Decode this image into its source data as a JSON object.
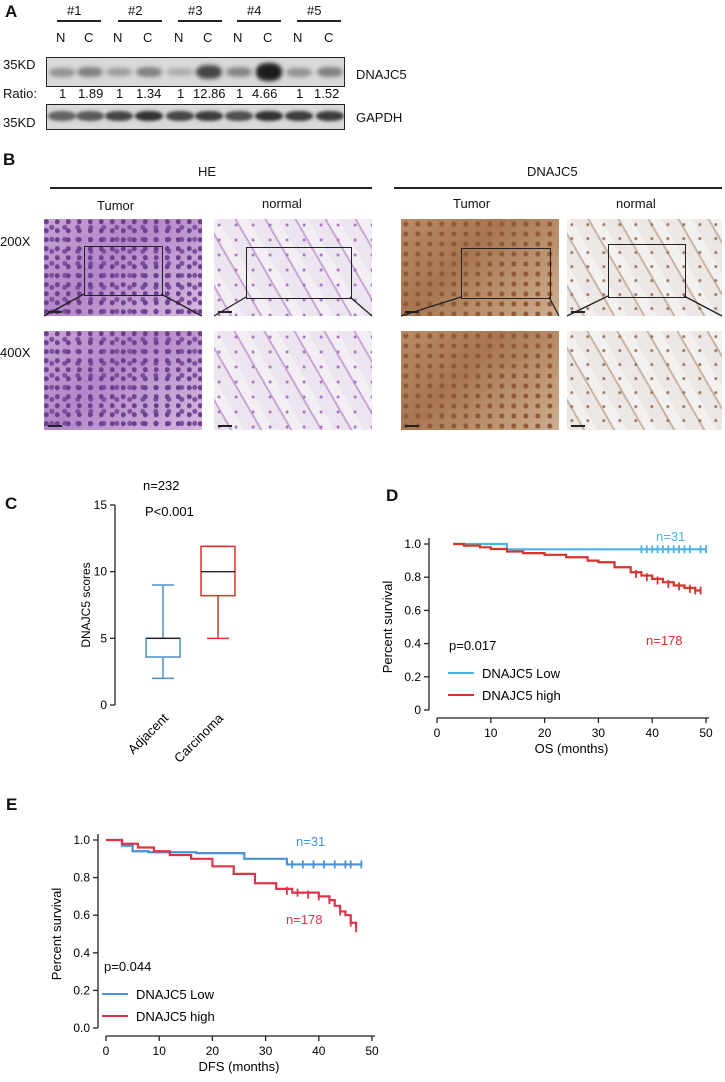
{
  "panels": {
    "A": "A",
    "B": "B",
    "C": "C",
    "D": "D",
    "E": "E"
  },
  "panel_a": {
    "samples": [
      "#1",
      "#2",
      "#3",
      "#4",
      "#5"
    ],
    "lane_labels": [
      "N",
      "C",
      "N",
      "C",
      "N",
      "C",
      "N",
      "C",
      "N",
      "C"
    ],
    "marker_top": "35KD",
    "marker_bottom": "35KD",
    "target_label": "DNAJC5",
    "control_label": "GAPDH",
    "ratio_label": "Ratio:",
    "ratios": [
      "1",
      "1.89",
      "1",
      "1.34",
      "1",
      "12.86",
      "1",
      "4.66",
      "1",
      "1.52"
    ],
    "target_band_intensity": [
      0.25,
      0.35,
      0.2,
      0.35,
      0.1,
      0.7,
      0.3,
      0.95,
      0.25,
      0.35
    ],
    "control_band_intensity": [
      0.6,
      0.65,
      0.75,
      0.85,
      0.75,
      0.8,
      0.7,
      0.85,
      0.8,
      0.8
    ]
  },
  "panel_b": {
    "groups": [
      "HE",
      "DNAJC5"
    ],
    "columns": [
      "Tumor",
      "normal",
      "Tumor",
      "normal"
    ],
    "rows": [
      "200X",
      "400X"
    ]
  },
  "chart_data": [
    {
      "type": "box",
      "panel": "C",
      "annotations": [
        "n=232",
        "P<0.001"
      ],
      "ylabel": "DNAJC5 scores",
      "ylim": [
        0,
        15
      ],
      "yticks": [
        0,
        5,
        10,
        15
      ],
      "categories": [
        "Adjacent",
        "Carcinoma"
      ],
      "colors": [
        "#4a90c8",
        "#d9342b"
      ],
      "boxes": [
        {
          "name": "Adjacent",
          "min": 2,
          "q1": 3.6,
          "median": 5,
          "q3": 5,
          "max": 9
        },
        {
          "name": "Carcinoma",
          "min": 5,
          "q1": 8.2,
          "median": 10,
          "q3": 11.9,
          "max": 11.9
        }
      ]
    },
    {
      "type": "line",
      "panel": "D",
      "xlabel": "OS (months)",
      "ylabel": "Percent survival",
      "xlim": [
        0,
        50
      ],
      "ylim": [
        0,
        1.0
      ],
      "xticks": [
        0,
        10,
        20,
        30,
        40,
        50
      ],
      "yticks": [
        0,
        0.2,
        0.4,
        0.6,
        0.8,
        1.0
      ],
      "ytick_labels": [
        "0",
        "0.2",
        "0.4",
        "0.6",
        "0.8",
        "1.0"
      ],
      "pvalue": "p=0.017",
      "series": [
        {
          "name": "DNAJC5 Low",
          "color": "#4ab3e0",
          "n_label": "n=31",
          "x": [
            3,
            13,
            13,
            50
          ],
          "y": [
            1.0,
            1.0,
            0.968,
            0.968
          ],
          "censor_x": [
            38,
            39,
            40,
            41,
            42,
            43,
            44,
            45,
            46,
            47,
            49,
            50
          ],
          "censor_y": 0.968
        },
        {
          "name": "DNAJC5 high",
          "color": "#d9342b",
          "n_label": "n=178",
          "x": [
            3,
            5,
            8,
            10,
            13,
            16,
            20,
            24,
            28,
            30,
            33,
            36,
            38,
            40,
            42,
            44,
            46,
            48,
            49
          ],
          "y": [
            1.0,
            0.99,
            0.98,
            0.97,
            0.955,
            0.945,
            0.935,
            0.92,
            0.9,
            0.89,
            0.86,
            0.83,
            0.81,
            0.79,
            0.77,
            0.75,
            0.735,
            0.72,
            0.72
          ],
          "censor_x": [
            37,
            39,
            41,
            43,
            45,
            47,
            48,
            49
          ],
          "censor_y_values": [
            0.82,
            0.8,
            0.78,
            0.76,
            0.745,
            0.73,
            0.72,
            0.72
          ]
        }
      ]
    },
    {
      "type": "line",
      "panel": "E",
      "xlabel": "DFS (months)",
      "ylabel": "Percent survival",
      "xlim": [
        0,
        50
      ],
      "ylim": [
        0,
        1.0
      ],
      "xticks": [
        0,
        10,
        20,
        30,
        40,
        50
      ],
      "yticks": [
        0,
        0.2,
        0.4,
        0.6,
        0.8,
        1.0
      ],
      "ytick_labels": [
        "0.0",
        "0.2",
        "0.4",
        "0.6",
        "0.8",
        "1.0"
      ],
      "pvalue": "p=0.044",
      "series": [
        {
          "name": "DNAJC5 Low",
          "color": "#4a90d9",
          "n_label": "n=31",
          "x": [
            0,
            3,
            3,
            5,
            5,
            8,
            8,
            17,
            17,
            26,
            26,
            34,
            34,
            48
          ],
          "y": [
            1.0,
            1.0,
            0.97,
            0.97,
            0.94,
            0.94,
            0.935,
            0.935,
            0.93,
            0.93,
            0.9,
            0.9,
            0.87,
            0.87
          ],
          "censor_x": [
            35,
            37,
            39,
            41,
            43,
            45,
            46,
            48
          ],
          "censor_y": 0.87
        },
        {
          "name": "DNAJC5 high",
          "color": "#e0334a",
          "n_label": "n=178",
          "x": [
            0,
            3,
            6,
            9,
            12,
            16,
            20,
            24,
            28,
            32,
            35,
            40,
            42,
            43,
            44,
            45,
            46,
            47
          ],
          "y": [
            1.0,
            0.98,
            0.96,
            0.94,
            0.92,
            0.9,
            0.86,
            0.82,
            0.77,
            0.74,
            0.72,
            0.7,
            0.68,
            0.65,
            0.62,
            0.6,
            0.56,
            0.53
          ],
          "censor_x": [
            34,
            36,
            38,
            40,
            42,
            44,
            46,
            47
          ],
          "censor_y_values": [
            0.73,
            0.72,
            0.71,
            0.7,
            0.68,
            0.62,
            0.56,
            0.53
          ]
        }
      ]
    }
  ]
}
